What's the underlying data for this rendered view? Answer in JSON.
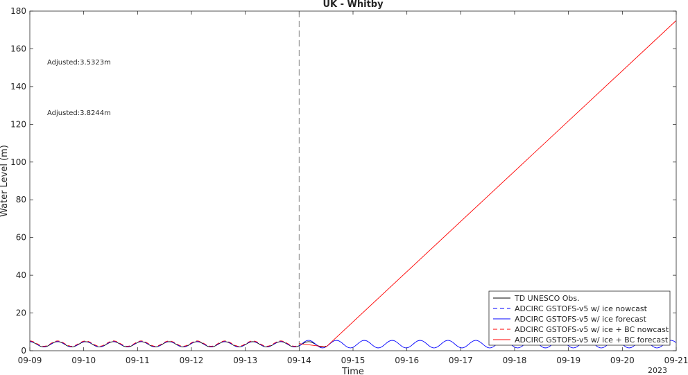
{
  "chart_data": {
    "type": "line",
    "title": "UK - Whitby",
    "xlabel": "Time",
    "ylabel": "Water Level (m)",
    "xlim": [
      "09-09",
      "09-21"
    ],
    "ylim": [
      0,
      180
    ],
    "x_ticks": [
      "09-09",
      "09-10",
      "09-11",
      "09-12",
      "09-13",
      "09-14",
      "09-15",
      "09-16",
      "09-17",
      "09-18",
      "09-19",
      "09-20",
      "09-21"
    ],
    "x_year_label": "2023",
    "y_ticks": [
      0,
      20,
      40,
      60,
      80,
      100,
      120,
      140,
      160,
      180
    ],
    "grid": false,
    "forecast_start": "09-14",
    "annotations": [
      {
        "text": "Adjusted:3.5323m",
        "color": "#0000ff"
      },
      {
        "text": "Adjusted:3.8244m",
        "color": "#ff0000"
      }
    ],
    "legend": {
      "location": "bottom-right",
      "entries": [
        {
          "label": "TD UNESCO Obs.",
          "color": "#000000",
          "dash": "solid"
        },
        {
          "label": "ADCIRC GSTOFS-v5 w/ ice nowcast",
          "color": "#0000ff",
          "dash": "dashed"
        },
        {
          "label": "ADCIRC GSTOFS-v5 w/ ice forecast",
          "color": "#0000ff",
          "dash": "solid"
        },
        {
          "label": "ADCIRC GSTOFS-v5 w/ ice + BC nowcast",
          "color": "#ff0000",
          "dash": "dashed"
        },
        {
          "label": "ADCIRC GSTOFS-v5 w/ ice + BC forecast",
          "color": "#ff0000",
          "dash": "solid"
        }
      ]
    },
    "series": [
      {
        "name": "TD UNESCO Obs.",
        "color": "#000000",
        "dash": "solid",
        "x_range": [
          "09-09",
          "09-14 12:00"
        ],
        "mean": 3.4,
        "amplitude": 1.4,
        "period_hours": 12.42
      },
      {
        "name": "ADCIRC GSTOFS-v5 w/ ice nowcast",
        "color": "#0000ff",
        "dash": "dashed",
        "x_range": [
          "09-09",
          "09-14"
        ],
        "mean": 3.5,
        "amplitude": 1.4,
        "period_hours": 12.42
      },
      {
        "name": "ADCIRC GSTOFS-v5 w/ ice forecast",
        "color": "#0000ff",
        "dash": "solid",
        "x_range": [
          "09-14",
          "09-21"
        ],
        "mean": 3.5,
        "amplitude": 2.0,
        "period_hours": 12.42
      },
      {
        "name": "ADCIRC GSTOFS-v5 w/ ice + BC nowcast",
        "color": "#ff0000",
        "dash": "dashed",
        "x_range": [
          "09-09",
          "09-14"
        ],
        "mean": 3.8,
        "amplitude": 1.4,
        "period_hours": 12.42
      },
      {
        "name": "ADCIRC GSTOFS-v5 w/ ice + BC forecast",
        "color": "#ff0000",
        "dash": "solid",
        "x_range": [
          "09-14",
          "09-21"
        ],
        "points": [
          [
            "09-14",
            3.8
          ],
          [
            "09-14 12:00",
            2.0
          ],
          [
            "09-21",
            175
          ]
        ]
      }
    ]
  }
}
